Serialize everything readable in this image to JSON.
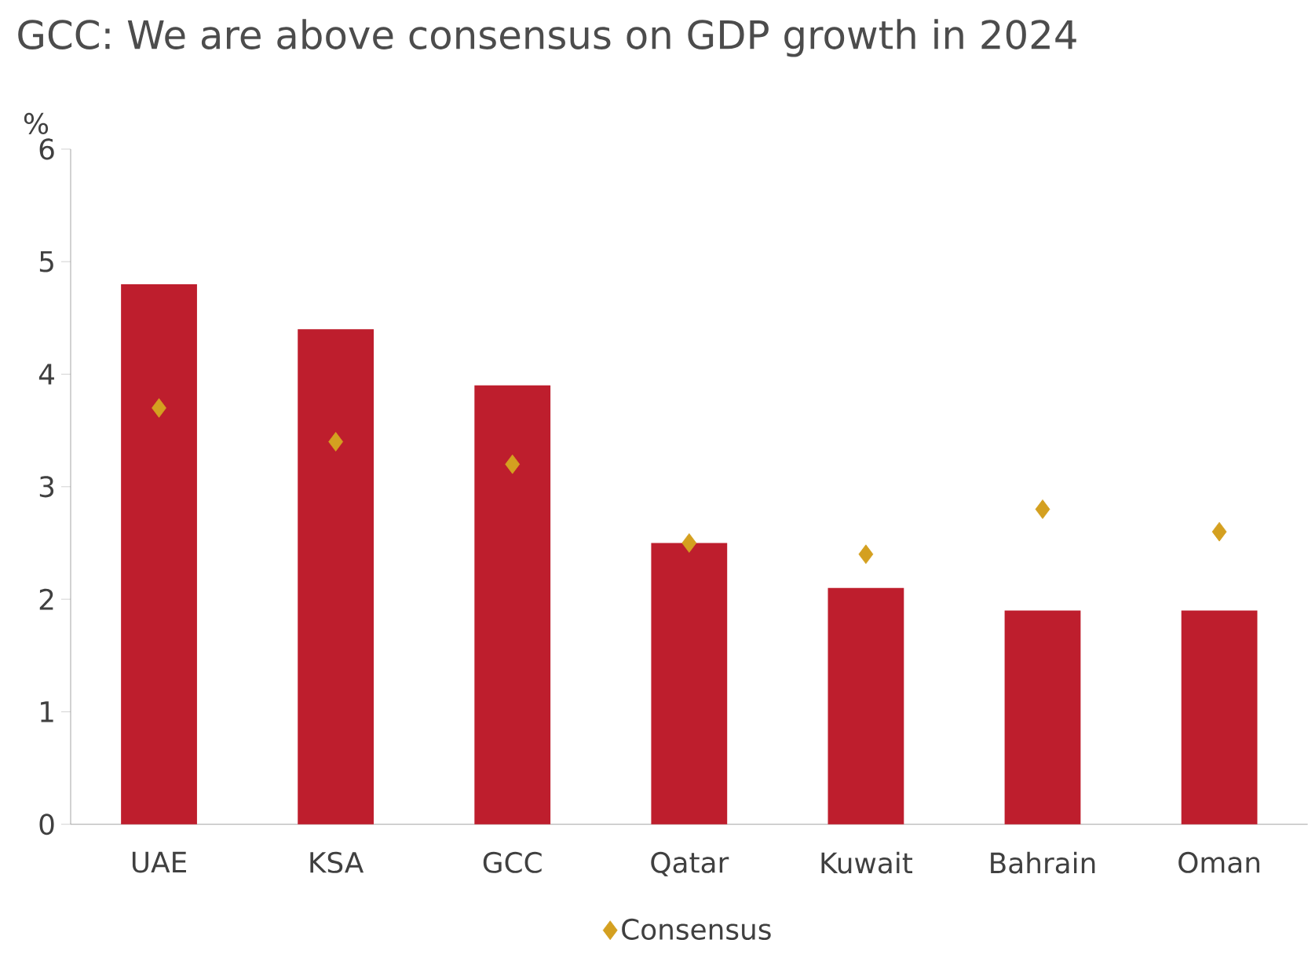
{
  "chart_data": {
    "type": "bar",
    "title": "GCC: We are above consensus on GDP growth in 2024",
    "ylabel": "%",
    "categories": [
      "UAE",
      "KSA",
      "GCC",
      "Qatar",
      "Kuwait",
      "Bahrain",
      "Oman"
    ],
    "series": [
      {
        "color": "#be1e2d",
        "values": [
          4.8,
          4.4,
          3.9,
          2.5,
          2.1,
          1.9,
          1.9
        ]
      },
      {
        "name": "Consensus",
        "type": "scatter",
        "marker": "diamond",
        "color": "#d4a020",
        "values": [
          3.7,
          3.4,
          3.2,
          2.5,
          2.4,
          2.8,
          2.6
        ]
      }
    ],
    "ylim": [
      0,
      6
    ],
    "yticks": [
      0,
      1,
      2,
      3,
      4,
      5,
      6
    ],
    "grid": false,
    "legend": "bottom"
  }
}
